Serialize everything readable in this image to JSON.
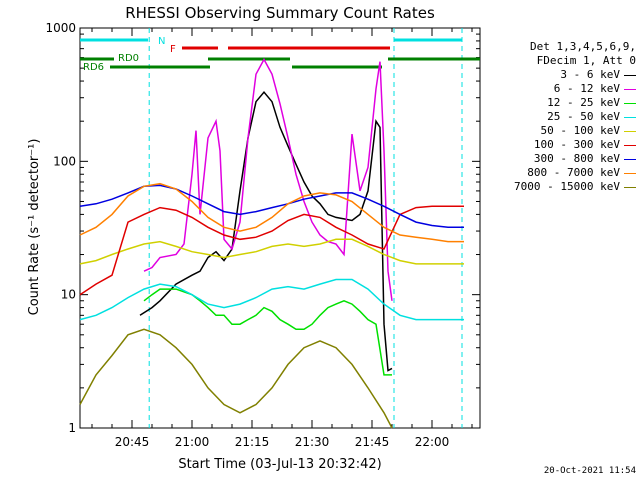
{
  "chart_data": {
    "type": "line",
    "title": "RHESSI Observing Summary Count Rates",
    "xlabel": "Start Time (03-Jul-13 20:32:42)",
    "ylabel": "Count Rate (s⁻¹ detector⁻¹)",
    "x_range_min": [
      0,
      100
    ],
    "y_range": [
      1,
      1000
    ],
    "y_scale": "log",
    "x_ticks": [
      {
        "min": 13,
        "label": "20:45"
      },
      {
        "min": 28,
        "label": "21:00"
      },
      {
        "min": 43,
        "label": "21:15"
      },
      {
        "min": 58,
        "label": "21:30"
      },
      {
        "min": 73,
        "label": "21:45"
      },
      {
        "min": 88,
        "label": "22:00"
      }
    ],
    "y_ticks": [
      {
        "value": 1,
        "label": "1"
      },
      {
        "value": 10,
        "label": "10"
      },
      {
        "value": 100,
        "label": "100"
      },
      {
        "value": 1000,
        "label": "1000"
      }
    ],
    "markers": {
      "night_label": "N",
      "flare_label": "F",
      "rd0_label": "RD0",
      "rd6_label": "RD6",
      "night_lines_min": [
        17.3,
        78.5,
        95.5
      ]
    },
    "legend_header": [
      "Det 1,3,4,5,6,9,",
      "FDecim 1, Att 0"
    ],
    "series": [
      {
        "name": "3 - 6 keV",
        "color": "#000000",
        "x": [
          15,
          18,
          20,
          24,
          28,
          30,
          32,
          34,
          36,
          38,
          40,
          42,
          44,
          46,
          48,
          50,
          52,
          54,
          56,
          58,
          60,
          62,
          64,
          66,
          68,
          70,
          72,
          74,
          75,
          76,
          77,
          78
        ],
        "y": [
          7,
          8,
          9,
          12,
          14,
          15,
          19,
          21,
          18,
          22,
          60,
          150,
          280,
          330,
          280,
          180,
          130,
          95,
          70,
          55,
          48,
          40,
          38,
          37,
          36,
          40,
          60,
          200,
          180,
          6,
          2.7,
          2.8
        ]
      },
      {
        "name": "6 - 12 keV",
        "color": "#e000e0",
        "x": [
          16,
          18,
          20,
          24,
          26,
          28,
          29,
          30,
          32,
          34,
          35,
          36,
          38,
          40,
          42,
          44,
          46,
          48,
          50,
          52,
          54,
          56,
          58,
          60,
          62,
          64,
          66,
          68,
          70,
          72,
          74,
          75,
          76,
          77,
          78
        ],
        "y": [
          15,
          16,
          19,
          20,
          24,
          80,
          170,
          40,
          150,
          200,
          120,
          26,
          22,
          35,
          150,
          450,
          580,
          450,
          270,
          150,
          80,
          50,
          35,
          28,
          25,
          24,
          20,
          160,
          60,
          90,
          350,
          560,
          120,
          15,
          9
        ]
      },
      {
        "name": "12 - 25 keV",
        "color": "#00e000",
        "x": [
          16,
          18,
          20,
          24,
          28,
          30,
          32,
          34,
          36,
          38,
          40,
          42,
          44,
          46,
          48,
          50,
          52,
          54,
          56,
          58,
          60,
          62,
          64,
          66,
          68,
          70,
          72,
          74,
          76,
          78
        ],
        "y": [
          9,
          10,
          11,
          11,
          10,
          9,
          8,
          7,
          7,
          6,
          6,
          6.5,
          7,
          8,
          7.5,
          6.5,
          6,
          5.5,
          5.5,
          6,
          7,
          8,
          8.5,
          9,
          8.5,
          7.5,
          6.5,
          6,
          2.5,
          2.5
        ]
      },
      {
        "name": "25 - 50 keV",
        "color": "#00e0e0",
        "x": [
          0,
          4,
          8,
          12,
          16,
          20,
          24,
          28,
          32,
          36,
          40,
          44,
          48,
          52,
          56,
          60,
          64,
          68,
          72,
          76,
          80,
          84,
          88,
          92,
          96
        ],
        "y": [
          6.5,
          7,
          8,
          9.5,
          11,
          12,
          11.5,
          10,
          8.5,
          8,
          8.5,
          9.5,
          11,
          11.5,
          11,
          12,
          13,
          13,
          11,
          8.5,
          7,
          6.5,
          6.5,
          6.5,
          6.5
        ]
      },
      {
        "name": "50 - 100 keV",
        "color": "#d0d000",
        "x": [
          0,
          4,
          8,
          12,
          16,
          20,
          24,
          28,
          32,
          36,
          40,
          44,
          48,
          52,
          56,
          60,
          64,
          68,
          72,
          76,
          80,
          84,
          88,
          92,
          96
        ],
        "y": [
          17,
          18,
          20,
          22,
          24,
          25,
          23,
          21,
          20,
          19,
          20,
          21,
          23,
          24,
          23,
          24,
          26,
          26,
          23,
          20,
          18,
          17,
          17,
          17,
          17
        ]
      },
      {
        "name": "100 - 300 keV",
        "color": "#e00000",
        "x": [
          0,
          4,
          8,
          12,
          16,
          20,
          24,
          28,
          32,
          36,
          40,
          44,
          48,
          52,
          56,
          60,
          64,
          68,
          72,
          76,
          80,
          84,
          88,
          92,
          96
        ],
        "y": [
          10,
          12,
          14,
          35,
          40,
          45,
          43,
          38,
          32,
          28,
          26,
          27,
          30,
          36,
          40,
          38,
          32,
          28,
          24,
          22,
          40,
          45,
          46,
          46,
          46
        ]
      },
      {
        "name": "300 - 800 keV",
        "color": "#0000e0",
        "x": [
          0,
          4,
          8,
          12,
          16,
          20,
          24,
          28,
          32,
          36,
          40,
          44,
          48,
          52,
          56,
          60,
          64,
          68,
          72,
          76,
          80,
          84,
          88,
          92,
          96
        ],
        "y": [
          46,
          48,
          52,
          58,
          65,
          66,
          62,
          55,
          48,
          42,
          40,
          42,
          45,
          48,
          52,
          55,
          58,
          58,
          52,
          46,
          40,
          35,
          33,
          32,
          32
        ]
      },
      {
        "name": "800 - 7000 keV",
        "color": "#ff8000",
        "x": [
          0,
          4,
          8,
          12,
          16,
          20,
          24,
          28,
          32,
          36,
          40,
          44,
          48,
          52,
          56,
          60,
          64,
          68,
          72,
          76,
          80,
          84,
          88,
          92,
          96
        ],
        "y": [
          28,
          32,
          40,
          55,
          65,
          68,
          62,
          50,
          38,
          32,
          30,
          32,
          38,
          48,
          55,
          58,
          56,
          50,
          40,
          32,
          28,
          27,
          26,
          25,
          25
        ]
      },
      {
        "name": "7000 - 15000 keV",
        "color": "#808000",
        "x": [
          0,
          4,
          8,
          12,
          16,
          20,
          24,
          28,
          32,
          36,
          40,
          44,
          48,
          52,
          56,
          60,
          64,
          68,
          72,
          76,
          78
        ],
        "y": [
          1.5,
          2.5,
          3.5,
          5,
          5.5,
          5,
          4,
          3,
          2,
          1.5,
          1.3,
          1.5,
          2,
          3,
          4,
          4.5,
          4,
          3,
          2,
          1.3,
          1
        ]
      }
    ],
    "legend_placement": "right"
  },
  "timestamp": "20-Oct-2021 11:54"
}
